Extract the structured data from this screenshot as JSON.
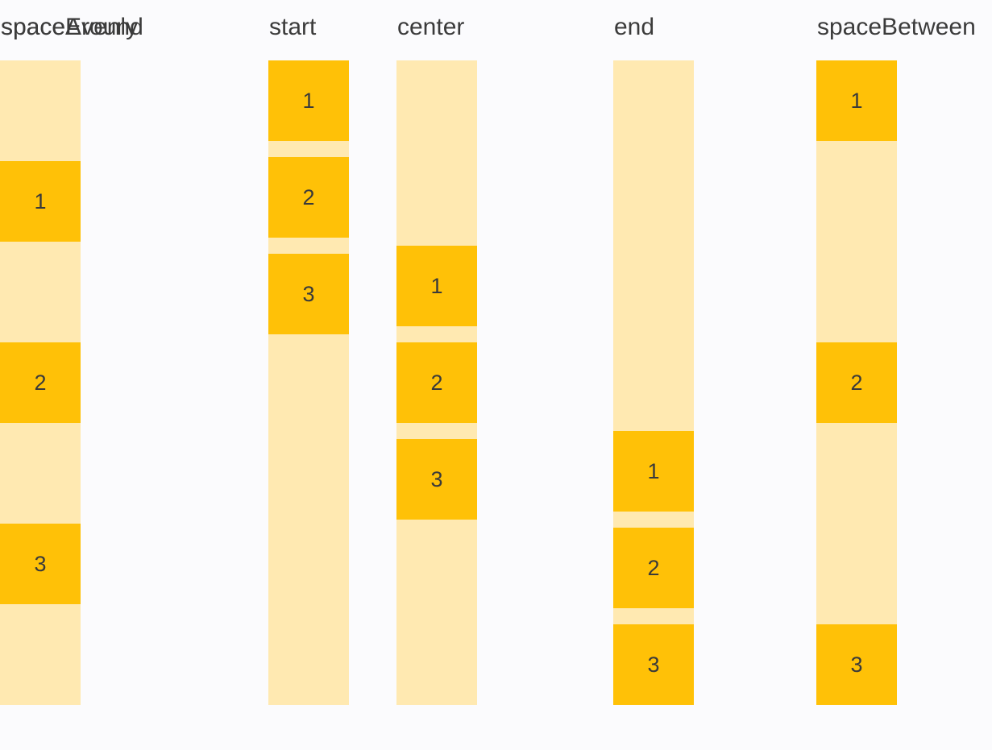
{
  "colors": {
    "page_background": "#FBFBFD",
    "track": "#FFE9B1",
    "box": "#FFC107",
    "label_text": "#3B3B3B",
    "number_text": "#3A3A3A"
  },
  "columns": [
    {
      "label": "start",
      "mode": "start",
      "boxes": [
        "1",
        "2",
        "3"
      ]
    },
    {
      "label": "center",
      "mode": "center",
      "boxes": [
        "1",
        "2",
        "3"
      ]
    },
    {
      "label": "end",
      "mode": "end",
      "boxes": [
        "1",
        "2",
        "3"
      ]
    },
    {
      "label": "spaceBetween",
      "mode": "spaceBetween",
      "boxes": [
        "1",
        "2",
        "3"
      ]
    },
    {
      "label": "spaceAround",
      "mode": "spaceAround",
      "boxes": [
        "1",
        "2",
        "3"
      ]
    },
    {
      "label": "spaceEvenly",
      "mode": "spaceEvenly",
      "boxes": [
        "1",
        "2",
        "3"
      ]
    }
  ]
}
